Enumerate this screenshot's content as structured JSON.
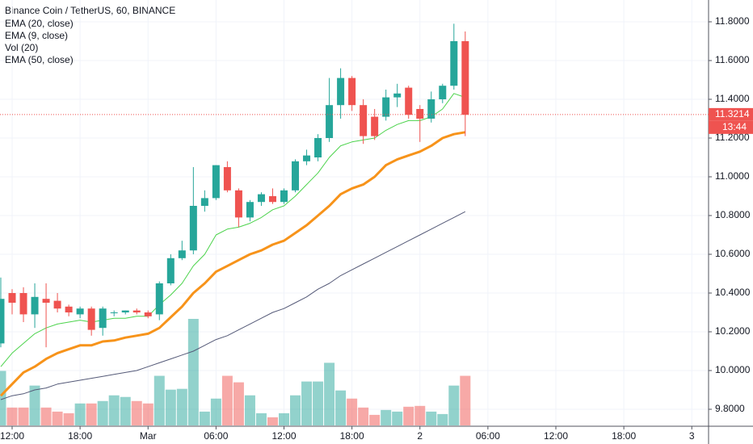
{
  "chart_data": {
    "type": "candlestick",
    "title": "Binance Coin / TetherUS, 60, BINANCE",
    "x": [
      11,
      12,
      13,
      14,
      15,
      16,
      17,
      18,
      19,
      20,
      21,
      22,
      23,
      24,
      25,
      26,
      27,
      28,
      29,
      30,
      31,
      32,
      33,
      34,
      35,
      36,
      37,
      38,
      39,
      40,
      41,
      42,
      43,
      44,
      45,
      46,
      47,
      48,
      49,
      50,
      51,
      52
    ],
    "open": [
      10.14,
      10.4,
      10.4,
      10.29,
      10.37,
      10.36,
      10.33,
      10.29,
      10.32,
      10.22,
      10.3,
      10.3,
      10.31,
      10.3,
      10.29,
      10.45,
      10.58,
      10.62,
      10.85,
      10.89,
      11.05,
      10.93,
      10.79,
      10.87,
      10.9,
      10.87,
      10.93,
      11.08,
      11.1,
      11.2,
      11.37,
      11.51,
      11.37,
      11.31,
      11.31,
      11.41,
      11.46,
      11.35,
      11.3,
      11.4,
      11.47,
      11.7
    ],
    "high": [
      10.48,
      10.42,
      10.43,
      10.45,
      10.45,
      10.4,
      10.34,
      10.33,
      10.33,
      10.33,
      10.31,
      10.31,
      10.32,
      10.31,
      10.46,
      10.6,
      10.67,
      11.05,
      10.93,
      11.06,
      11.08,
      10.94,
      10.88,
      10.92,
      10.94,
      10.94,
      11.09,
      11.14,
      11.22,
      11.51,
      11.56,
      11.52,
      11.4,
      11.35,
      11.45,
      11.48,
      11.47,
      11.37,
      11.44,
      11.48,
      11.79,
      11.75
    ],
    "low": [
      10.12,
      10.29,
      10.25,
      10.22,
      10.12,
      10.3,
      10.28,
      10.27,
      10.18,
      10.18,
      10.28,
      10.29,
      10.29,
      10.27,
      10.26,
      10.44,
      10.57,
      10.6,
      10.82,
      10.88,
      10.92,
      10.74,
      10.77,
      10.85,
      10.86,
      10.86,
      10.92,
      11.06,
      11.08,
      11.18,
      11.3,
      11.34,
      11.17,
      11.19,
      11.29,
      11.36,
      11.3,
      11.18,
      11.28,
      11.38,
      11.45,
      11.21
    ],
    "close": [
      10.37,
      10.35,
      10.29,
      10.38,
      10.35,
      10.32,
      10.3,
      10.32,
      10.21,
      10.32,
      10.3,
      10.31,
      10.3,
      10.28,
      10.45,
      10.58,
      10.62,
      10.85,
      10.89,
      11.06,
      10.93,
      10.79,
      10.87,
      10.91,
      10.87,
      10.93,
      11.08,
      11.11,
      11.2,
      11.37,
      11.51,
      11.37,
      11.21,
      11.21,
      11.41,
      11.43,
      11.32,
      11.3,
      11.4,
      11.47,
      11.7,
      11.32
    ],
    "up_color": "#26a69a",
    "down_color": "#ef5350",
    "series": [
      {
        "name": "EMA (20, close)",
        "color": "#f7931a",
        "width": 3,
        "values": [
          9.87,
          9.93,
          9.99,
          10.02,
          10.06,
          10.09,
          10.11,
          10.13,
          10.13,
          10.15,
          10.155,
          10.17,
          10.18,
          10.19,
          10.22,
          10.275,
          10.33,
          10.4,
          10.45,
          10.51,
          10.54,
          10.57,
          10.6,
          10.62,
          10.65,
          10.67,
          10.71,
          10.75,
          10.8,
          10.85,
          10.91,
          10.94,
          10.96,
          11.0,
          11.06,
          11.09,
          11.11,
          11.13,
          11.16,
          11.2,
          11.22,
          11.23
        ]
      },
      {
        "name": "EMA (9, close)",
        "color": "#4cd34c",
        "width": 1,
        "values": [
          10.02,
          10.09,
          10.14,
          10.19,
          10.22,
          10.24,
          10.25,
          10.26,
          10.25,
          10.26,
          10.27,
          10.27,
          10.28,
          10.28,
          10.34,
          10.39,
          10.45,
          10.54,
          10.6,
          10.7,
          10.73,
          10.74,
          10.76,
          10.79,
          10.83,
          10.85,
          10.9,
          10.96,
          11.02,
          11.1,
          11.16,
          11.18,
          11.19,
          11.2,
          11.24,
          11.27,
          11.29,
          11.29,
          11.31,
          11.35,
          11.43,
          11.41
        ]
      },
      {
        "name": "Vol (20)",
        "kind": "volume",
        "values": [
          67,
          22,
          22,
          49,
          22,
          17,
          15,
          27,
          27,
          30,
          37,
          35,
          30,
          27,
          61,
          44,
          45,
          131,
          17,
          33,
          61,
          53,
          37,
          15,
          10,
          15,
          37,
          54,
          54,
          77,
          43,
          33,
          22,
          13,
          19,
          17,
          23,
          24,
          17,
          14,
          49,
          61
        ]
      },
      {
        "name": "EMA (50, close)",
        "color": "#555a78",
        "width": 1,
        "values": [
          9.85,
          9.87,
          9.88,
          9.9,
          9.91,
          9.93,
          9.94,
          9.95,
          9.96,
          9.97,
          9.98,
          9.99,
          10.0,
          10.02,
          10.04,
          10.06,
          10.08,
          10.1,
          10.13,
          10.16,
          10.18,
          10.21,
          10.24,
          10.27,
          10.3,
          10.32,
          10.35,
          10.38,
          10.42,
          10.45,
          10.49,
          10.52,
          10.55,
          10.58,
          10.61,
          10.64,
          10.67,
          10.7,
          10.73,
          10.76,
          10.79,
          10.82
        ]
      }
    ],
    "xlim": [
      10.93,
      73.48
    ],
    "xticks": [
      {
        "value": 12,
        "label": "12:00"
      },
      {
        "value": 18,
        "label": "18:00"
      },
      {
        "value": 24,
        "label": "Mar"
      },
      {
        "value": 30,
        "label": "06:00"
      },
      {
        "value": 36,
        "label": "12:00"
      },
      {
        "value": 42,
        "label": "18:00"
      },
      {
        "value": 48,
        "label": "2"
      },
      {
        "value": 54,
        "label": "06:00"
      },
      {
        "value": 60,
        "label": "12:00"
      },
      {
        "value": 66,
        "label": "18:00"
      },
      {
        "value": 72,
        "label": "3"
      }
    ],
    "ylim": [
      9.7125,
      11.9125
    ],
    "yticks": [
      {
        "value": 9.8,
        "label": "9.8000"
      },
      {
        "value": 10,
        "label": "10.0000"
      },
      {
        "value": 10.2,
        "label": "10.2000"
      },
      {
        "value": 10.4,
        "label": "10.4000"
      },
      {
        "value": 10.6,
        "label": "10.6000"
      },
      {
        "value": 10.8,
        "label": "10.8000"
      },
      {
        "value": 11,
        "label": "11.0000"
      },
      {
        "value": 11.2,
        "label": "11.2000"
      },
      {
        "value": 11.4,
        "label": "11.4000"
      },
      {
        "value": 11.6,
        "label": "11.6000"
      },
      {
        "value": 11.8,
        "label": "11.8000"
      }
    ],
    "grid": true,
    "last_price": {
      "value": 11.3214,
      "label": "11.3214"
    },
    "countdown": "13:44"
  }
}
